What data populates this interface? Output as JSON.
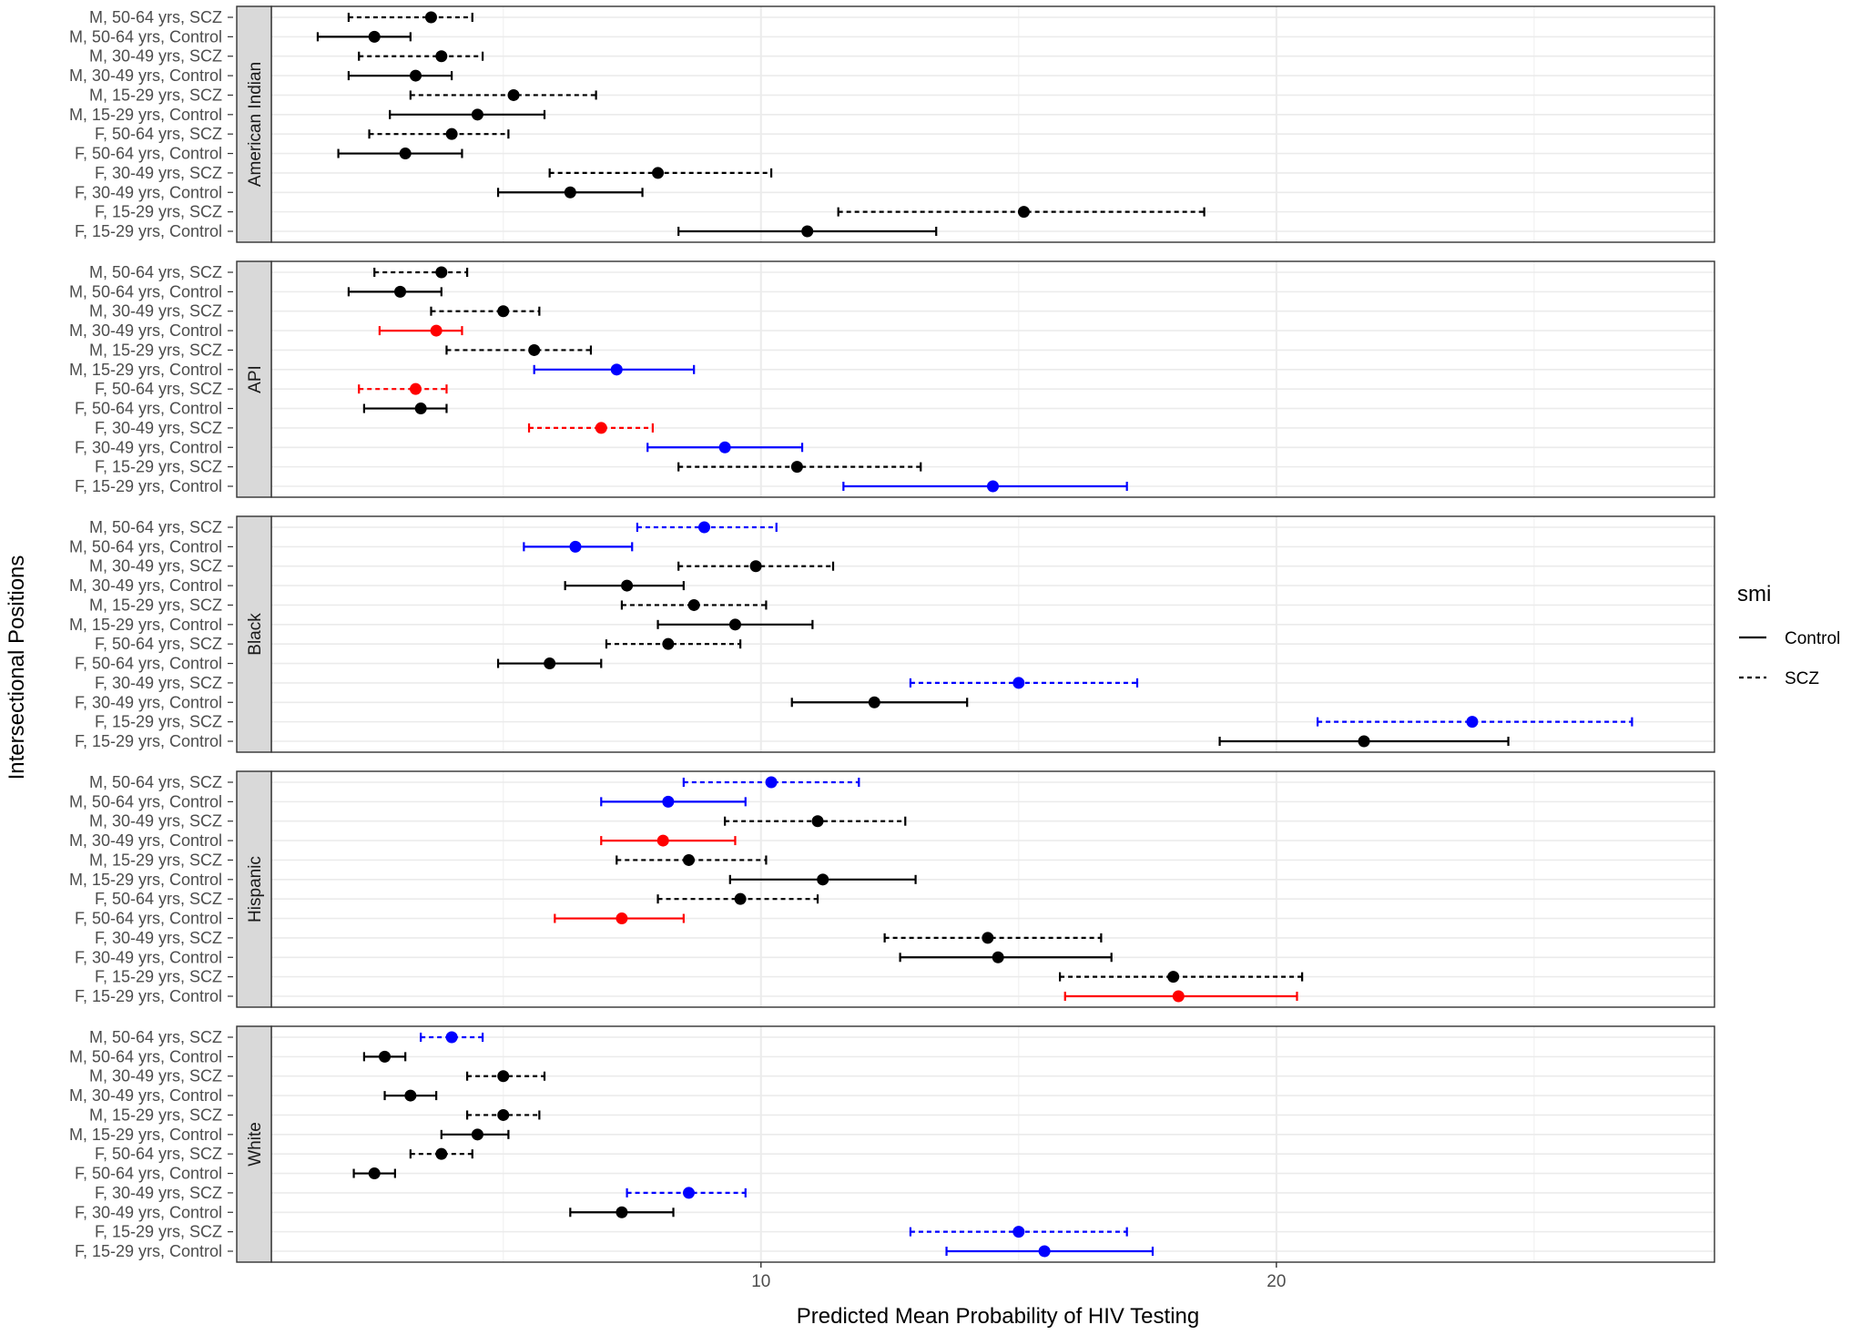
{
  "chart_data": {
    "type": "forest",
    "xlabel": "Predicted Mean Probability of HIV Testing",
    "ylabel": "Intersectional Positions",
    "xlim": [
      0.5,
      28.5
    ],
    "x_ticks": [
      10,
      20
    ],
    "grid": true,
    "categories": [
      "M, 50-64 yrs, SCZ",
      "M, 50-64 yrs, Control",
      "M, 30-49 yrs, SCZ",
      "M, 30-49 yrs, Control",
      "M, 15-29 yrs, SCZ",
      "M, 15-29 yrs, Control",
      "F, 50-64 yrs, SCZ",
      "F, 50-64 yrs, Control",
      "F, 30-49 yrs, SCZ",
      "F, 30-49 yrs, Control",
      "F, 15-29 yrs, SCZ",
      "F, 15-29 yrs, Control"
    ],
    "legend": {
      "title": "smi",
      "position": "right",
      "entries": [
        {
          "label": "Control",
          "linetype": "solid"
        },
        {
          "label": "SCZ",
          "linetype": "dashed"
        }
      ]
    },
    "colors": {
      "black": "#000000",
      "blue": "#0000ff",
      "red": "#ff0000"
    },
    "panels": [
      {
        "name": "American Indian",
        "rows": [
          {
            "est": 3.6,
            "lo": 2.0,
            "hi": 4.4,
            "color": "black"
          },
          {
            "est": 2.5,
            "lo": 1.4,
            "hi": 3.2,
            "color": "black"
          },
          {
            "est": 3.8,
            "lo": 2.2,
            "hi": 4.6,
            "color": "black"
          },
          {
            "est": 3.3,
            "lo": 2.0,
            "hi": 4.0,
            "color": "black"
          },
          {
            "est": 5.2,
            "lo": 3.2,
            "hi": 6.8,
            "color": "black"
          },
          {
            "est": 4.5,
            "lo": 2.8,
            "hi": 5.8,
            "color": "black"
          },
          {
            "est": 4.0,
            "lo": 2.4,
            "hi": 5.1,
            "color": "black"
          },
          {
            "est": 3.1,
            "lo": 1.8,
            "hi": 4.2,
            "color": "black"
          },
          {
            "est": 8.0,
            "lo": 5.9,
            "hi": 10.2,
            "color": "black"
          },
          {
            "est": 6.3,
            "lo": 4.9,
            "hi": 7.7,
            "color": "black"
          },
          {
            "est": 15.1,
            "lo": 11.5,
            "hi": 18.6,
            "color": "black"
          },
          {
            "est": 10.9,
            "lo": 8.4,
            "hi": 13.4,
            "color": "black"
          }
        ]
      },
      {
        "name": "API",
        "rows": [
          {
            "est": 3.8,
            "lo": 2.5,
            "hi": 4.3,
            "color": "black"
          },
          {
            "est": 3.0,
            "lo": 2.0,
            "hi": 3.8,
            "color": "black"
          },
          {
            "est": 5.0,
            "lo": 3.6,
            "hi": 5.7,
            "color": "black"
          },
          {
            "est": 3.7,
            "lo": 2.6,
            "hi": 4.2,
            "color": "red"
          },
          {
            "est": 5.6,
            "lo": 3.9,
            "hi": 6.7,
            "color": "black"
          },
          {
            "est": 7.2,
            "lo": 5.6,
            "hi": 8.7,
            "color": "blue"
          },
          {
            "est": 3.3,
            "lo": 2.2,
            "hi": 3.9,
            "color": "red"
          },
          {
            "est": 3.4,
            "lo": 2.3,
            "hi": 3.9,
            "color": "black"
          },
          {
            "est": 6.9,
            "lo": 5.5,
            "hi": 7.9,
            "color": "red"
          },
          {
            "est": 9.3,
            "lo": 7.8,
            "hi": 10.8,
            "color": "blue"
          },
          {
            "est": 10.7,
            "lo": 8.4,
            "hi": 13.1,
            "color": "black"
          },
          {
            "est": 14.5,
            "lo": 11.6,
            "hi": 17.1,
            "color": "blue"
          }
        ]
      },
      {
        "name": "Black",
        "rows": [
          {
            "est": 8.9,
            "lo": 7.6,
            "hi": 10.3,
            "color": "blue"
          },
          {
            "est": 6.4,
            "lo": 5.4,
            "hi": 7.5,
            "color": "blue"
          },
          {
            "est": 9.9,
            "lo": 8.4,
            "hi": 11.4,
            "color": "black"
          },
          {
            "est": 7.4,
            "lo": 6.2,
            "hi": 8.5,
            "color": "black"
          },
          {
            "est": 8.7,
            "lo": 7.3,
            "hi": 10.1,
            "color": "black"
          },
          {
            "est": 9.5,
            "lo": 8.0,
            "hi": 11.0,
            "color": "black"
          },
          {
            "est": 8.2,
            "lo": 7.0,
            "hi": 9.6,
            "color": "black"
          },
          {
            "est": 5.9,
            "lo": 4.9,
            "hi": 6.9,
            "color": "black"
          },
          {
            "est": 15.0,
            "lo": 12.9,
            "hi": 17.3,
            "color": "blue"
          },
          {
            "est": 12.2,
            "lo": 10.6,
            "hi": 14.0,
            "color": "black"
          },
          {
            "est": 23.8,
            "lo": 20.8,
            "hi": 26.9,
            "color": "blue"
          },
          {
            "est": 21.7,
            "lo": 18.9,
            "hi": 24.5,
            "color": "black"
          }
        ]
      },
      {
        "name": "Hispanic",
        "rows": [
          {
            "est": 10.2,
            "lo": 8.5,
            "hi": 11.9,
            "color": "blue"
          },
          {
            "est": 8.2,
            "lo": 6.9,
            "hi": 9.7,
            "color": "blue"
          },
          {
            "est": 11.1,
            "lo": 9.3,
            "hi": 12.8,
            "color": "black"
          },
          {
            "est": 8.1,
            "lo": 6.9,
            "hi": 9.5,
            "color": "red"
          },
          {
            "est": 8.6,
            "lo": 7.2,
            "hi": 10.1,
            "color": "black"
          },
          {
            "est": 11.2,
            "lo": 9.4,
            "hi": 13.0,
            "color": "black"
          },
          {
            "est": 9.6,
            "lo": 8.0,
            "hi": 11.1,
            "color": "black"
          },
          {
            "est": 7.3,
            "lo": 6.0,
            "hi": 8.5,
            "color": "red"
          },
          {
            "est": 14.4,
            "lo": 12.4,
            "hi": 16.6,
            "color": "black"
          },
          {
            "est": 14.6,
            "lo": 12.7,
            "hi": 16.8,
            "color": "black"
          },
          {
            "est": 18.0,
            "lo": 15.8,
            "hi": 20.5,
            "color": "black"
          },
          {
            "est": 18.1,
            "lo": 15.9,
            "hi": 20.4,
            "color": "red"
          }
        ]
      },
      {
        "name": "White",
        "rows": [
          {
            "est": 4.0,
            "lo": 3.4,
            "hi": 4.6,
            "color": "blue"
          },
          {
            "est": 2.7,
            "lo": 2.3,
            "hi": 3.1,
            "color": "black"
          },
          {
            "est": 5.0,
            "lo": 4.3,
            "hi": 5.8,
            "color": "black"
          },
          {
            "est": 3.2,
            "lo": 2.7,
            "hi": 3.7,
            "color": "black"
          },
          {
            "est": 5.0,
            "lo": 4.3,
            "hi": 5.7,
            "color": "black"
          },
          {
            "est": 4.5,
            "lo": 3.8,
            "hi": 5.1,
            "color": "black"
          },
          {
            "est": 3.8,
            "lo": 3.2,
            "hi": 4.4,
            "color": "black"
          },
          {
            "est": 2.5,
            "lo": 2.1,
            "hi": 2.9,
            "color": "black"
          },
          {
            "est": 8.6,
            "lo": 7.4,
            "hi": 9.7,
            "color": "blue"
          },
          {
            "est": 7.3,
            "lo": 6.3,
            "hi": 8.3,
            "color": "black"
          },
          {
            "est": 15.0,
            "lo": 12.9,
            "hi": 17.1,
            "color": "blue"
          },
          {
            "est": 15.5,
            "lo": 13.6,
            "hi": 17.6,
            "color": "blue"
          }
        ]
      }
    ]
  }
}
